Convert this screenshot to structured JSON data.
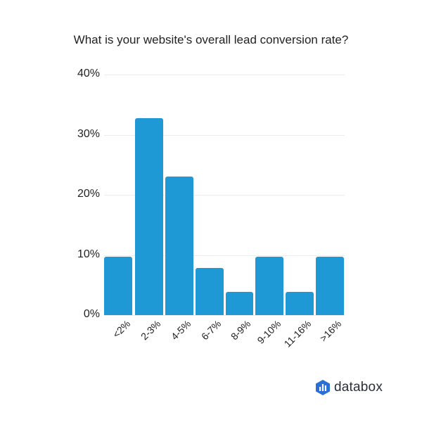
{
  "chart_data": {
    "type": "bar",
    "title": "What is your website's overall lead conversion rate?",
    "categories": [
      "<2%",
      "2-3%",
      "4-5%",
      "6-7%",
      "8-9%",
      "9-10%",
      "11-16%",
      ">16%"
    ],
    "values": [
      9.7,
      32.7,
      23.1,
      7.8,
      3.9,
      9.7,
      3.9,
      9.7
    ],
    "unit": "%",
    "xlabel": "",
    "ylabel": "",
    "ylim": [
      0,
      40
    ],
    "yticks": [
      "0%",
      "10%",
      "20%",
      "30%",
      "40%"
    ],
    "grid": true,
    "legend": "none",
    "bar_color": "#1f98d6"
  },
  "branding": {
    "logo_text": "databox",
    "logo_color": "#2a6fd6"
  }
}
